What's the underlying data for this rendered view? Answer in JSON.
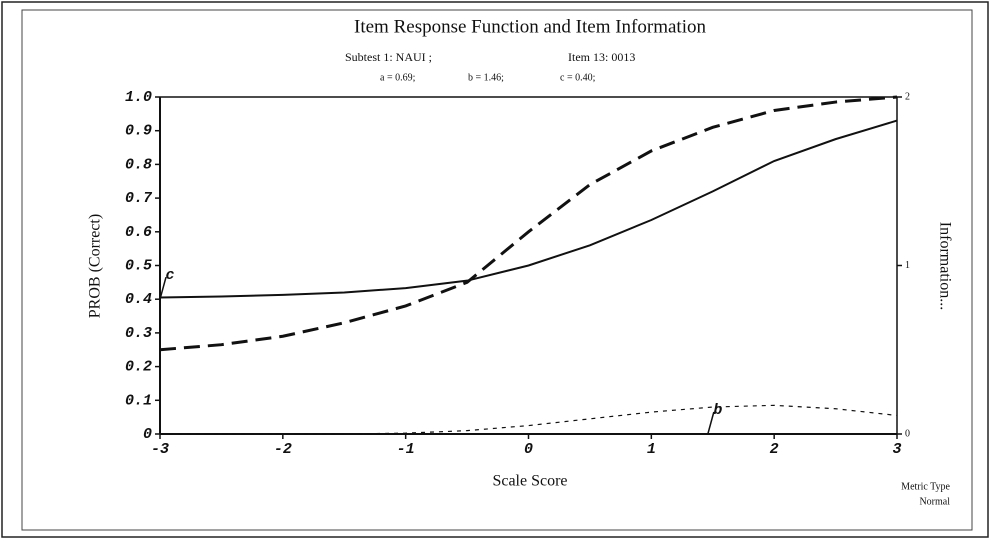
{
  "chart_data": {
    "type": "line",
    "title": "Item Response Function and Item Information",
    "subtitle_left": "Subtest 1: NAUI    ;",
    "subtitle_right": "Item 13: 0013",
    "parameters": [
      "a = 0.69;",
      "b = 1.46;",
      "c = 0.40;"
    ],
    "y_label": "PROB (Correct)",
    "y2_label": "Information...",
    "x_label": "Scale Score",
    "footer": [
      "Metric Type",
      "Normal"
    ],
    "x": [
      -3,
      -2.5,
      -2,
      -1.5,
      -1,
      -0.5,
      0,
      0.5,
      1,
      1.5,
      2,
      2.5,
      3
    ],
    "series": [
      {
        "color": "#111111",
        "dash": "solid",
        "values": [
          0.405,
          0.408,
          0.413,
          0.42,
          0.433,
          0.455,
          0.5,
          0.56,
          0.635,
          0.72,
          0.81,
          0.875,
          0.93
        ]
      },
      {
        "color": "#111111",
        "dash": "long",
        "values": [
          0.25,
          0.265,
          0.29,
          0.33,
          0.38,
          0.45,
          0.6,
          0.74,
          0.84,
          0.91,
          0.96,
          0.985,
          1.0
        ]
      },
      {
        "color": "#111111",
        "dash": "dotted",
        "axis": "y2",
        "values": [
          0,
          0,
          0,
          0,
          0.005,
          0.02,
          0.05,
          0.09,
          0.13,
          0.16,
          0.17,
          0.15,
          0.11
        ]
      }
    ],
    "annotations": [
      {
        "text": "c",
        "x": -3,
        "y": 0.4
      },
      {
        "text": "b",
        "x": 1.46,
        "y": 0
      }
    ],
    "xlim": [
      -3,
      3
    ],
    "xticks": [
      -3,
      -2,
      -1,
      0,
      1,
      2,
      3
    ],
    "ylim": [
      0,
      1
    ],
    "yticks": [
      0,
      0.1,
      0.2,
      0.3,
      0.4,
      0.5,
      0.6,
      0.7,
      0.8,
      0.9,
      {
        "value": 1,
        "label": "1.0"
      }
    ],
    "y2lim": [
      0,
      2
    ],
    "y2ticks": [
      0,
      1,
      2
    ],
    "grid": false
  }
}
